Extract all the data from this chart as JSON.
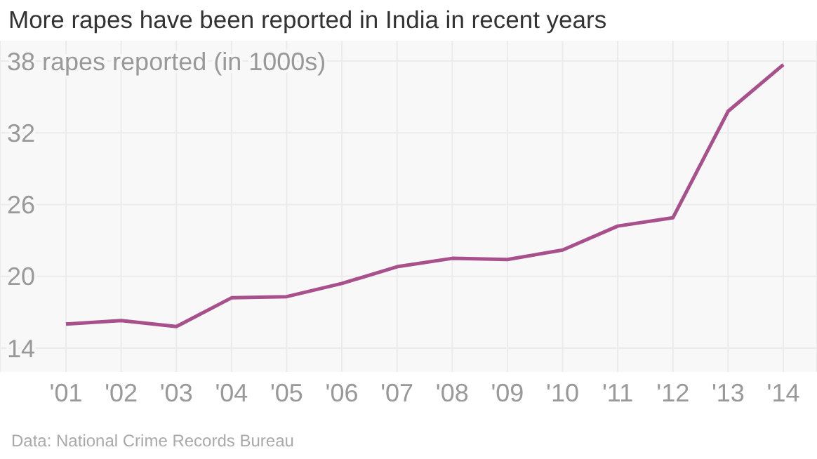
{
  "chart_data": {
    "type": "line",
    "title": "More rapes have been reported in India in recent years",
    "categories": [
      "'01",
      "'02",
      "'03",
      "'04",
      "'05",
      "'06",
      "'07",
      "'08",
      "'09",
      "'10",
      "'11",
      "'12",
      "'13",
      "'14"
    ],
    "series": [
      {
        "color": "#a8508c",
        "values": [
          16.0,
          16.3,
          15.8,
          18.2,
          18.3,
          19.4,
          20.8,
          21.5,
          21.4,
          22.2,
          24.2,
          24.9,
          33.8,
          37.7
        ]
      }
    ],
    "ylim": [
      12,
      39.7
    ],
    "yticks": [
      14,
      20,
      26,
      32,
      {
        "value": 38,
        "label": "38 rapes reported (in 1000s)"
      }
    ],
    "grid": true,
    "legend": false,
    "marker": "none",
    "line_style": "solid",
    "annotations": [
      "Data: National Crime Records Bureau"
    ]
  }
}
